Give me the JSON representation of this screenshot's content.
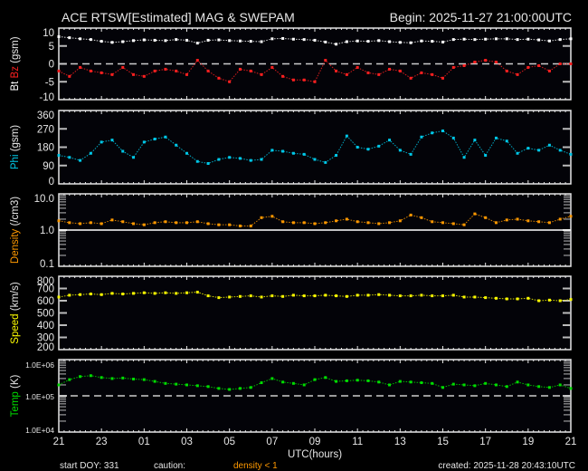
{
  "header": {
    "title": "ACE RTSW[Estimated] MAG & SWEPAM",
    "begin": "Begin: 2025-11-27 21:00:00UTC"
  },
  "footer": {
    "start_doy": "start DOY: 331",
    "caution": "caution:",
    "caution_note": "density < 1",
    "xlabel": "UTC(hours)",
    "created": "created: 2025-11-28 20:43:10UTC"
  },
  "colors": {
    "background": "#000000",
    "axes": "#e6e6e6",
    "bt": "#ffffff",
    "bz": "#ff2020",
    "phi": "#00c8e8",
    "density": "#ff9900",
    "speed": "#ffff00",
    "temp": "#00dd00"
  },
  "chart_data": {
    "type": "scatter",
    "x_unit": "UTC hours",
    "x_start": "2025-11-27 21:00",
    "x_step_minutes": 30,
    "x_tick_labels": [
      "21",
      "23",
      "01",
      "03",
      "05",
      "07",
      "09",
      "11",
      "13",
      "15",
      "17",
      "19",
      "21"
    ],
    "panels": [
      {
        "id": "mag",
        "ylabel_parts": [
          {
            "text": "Bt",
            "color": "#ffffff"
          },
          {
            "text": " Bz",
            "color": "#ff2020"
          },
          {
            "text": "  (gsm)",
            "color": "#e6e6e6"
          }
        ],
        "scale": "linear",
        "ylim": [
          -10,
          10
        ],
        "y_tick_labels": [
          "10",
          "5",
          "0",
          "-5",
          "-10"
        ],
        "y_tick_values": [
          10,
          5,
          0,
          -5,
          -10
        ],
        "reference_line": 0,
        "series": [
          {
            "name": "Bt",
            "color": "#ffffff",
            "values": [
              7.6,
              7.3,
              7.0,
              6.8,
              6.3,
              6.0,
              6.2,
              6.5,
              6.7,
              6.6,
              6.5,
              6.8,
              6.6,
              5.8,
              6.6,
              6.7,
              6.5,
              6.4,
              6.3,
              6.2,
              7.0,
              7.1,
              6.9,
              6.8,
              6.6,
              6.1,
              5.5,
              6.2,
              6.4,
              6.3,
              6.5,
              6.2,
              6.0,
              5.9,
              6.4,
              6.3,
              6.1,
              6.8,
              6.9,
              6.8,
              6.9,
              7.0,
              7.0,
              6.8,
              6.9,
              6.7,
              6.4,
              6.8,
              7.0
            ]
          },
          {
            "name": "Bz",
            "color": "#ff2020",
            "values": [
              -2,
              -3.5,
              -1,
              -2,
              -2.5,
              -3,
              -1,
              -3,
              -3.5,
              -2,
              -1.5,
              -2,
              -3,
              1,
              -2,
              -4,
              -5,
              -1.5,
              -2,
              -3,
              -1,
              -3.5,
              -4.5,
              -4.5,
              -5,
              1,
              -2,
              -3,
              -1,
              -2.5,
              -3,
              -1.5,
              -2,
              -4,
              -2.5,
              -3,
              -4,
              -1,
              -0.5,
              0.5,
              1,
              0.5,
              -2,
              -3,
              -1,
              -0.5,
              -2,
              0,
              0
            ]
          }
        ]
      },
      {
        "id": "phi",
        "ylabel_parts": [
          {
            "text": "Phi",
            "color": "#00c8e8"
          },
          {
            "text": "  (gsm)",
            "color": "#e6e6e6"
          }
        ],
        "scale": "linear",
        "ylim": [
          0,
          360
        ],
        "y_tick_labels": [
          "360",
          "270",
          "180",
          "90",
          "0"
        ],
        "y_tick_values": [
          360,
          270,
          180,
          90,
          0
        ],
        "series": [
          {
            "name": "Phi",
            "color": "#00c8e8",
            "values": [
              140,
              130,
              115,
              150,
              205,
              215,
              160,
              130,
              205,
              220,
              230,
              190,
              150,
              110,
              100,
              120,
              130,
              125,
              115,
              120,
              165,
              160,
              150,
              145,
              120,
              105,
              140,
              235,
              180,
              170,
              185,
              215,
              165,
              145,
              230,
              250,
              260,
              225,
              130,
              215,
              140,
              225,
              210,
              150,
              175,
              165,
              190,
              165,
              145
            ]
          }
        ]
      },
      {
        "id": "density",
        "ylabel_parts": [
          {
            "text": "Density",
            "color": "#ff9900"
          },
          {
            "text": "  (/cm3)",
            "color": "#e6e6e6"
          }
        ],
        "scale": "log",
        "ylim": [
          0.1,
          10
        ],
        "y_tick_labels": [
          "10.0",
          "1.0",
          "0.1"
        ],
        "y_tick_values": [
          10,
          1,
          0.1
        ],
        "reference_line": 1,
        "series": [
          {
            "name": "Density",
            "color": "#ff9900",
            "values": [
              1.8,
              1.6,
              1.5,
              1.6,
              1.5,
              1.9,
              1.7,
              1.5,
              1.4,
              1.6,
              1.7,
              1.6,
              1.6,
              1.7,
              1.5,
              1.4,
              1.4,
              1.3,
              1.3,
              2.2,
              2.4,
              1.7,
              1.6,
              1.6,
              1.5,
              1.6,
              1.8,
              2.0,
              1.7,
              1.6,
              1.5,
              1.6,
              1.8,
              2.6,
              2.2,
              1.7,
              1.6,
              1.5,
              1.4,
              2.8,
              2.2,
              1.6,
              1.9,
              2.0,
              1.8,
              1.7,
              1.6,
              2.0,
              2.4
            ]
          }
        ]
      },
      {
        "id": "speed",
        "ylabel_parts": [
          {
            "text": "Speed",
            "color": "#ffff00"
          },
          {
            "text": "  (km/s)",
            "color": "#e6e6e6"
          }
        ],
        "scale": "linear",
        "ylim": [
          200,
          800
        ],
        "y_tick_labels": [
          "800",
          "700",
          "600",
          "500",
          "400",
          "300",
          "200"
        ],
        "y_tick_values": [
          800,
          700,
          600,
          500,
          400,
          300,
          200
        ],
        "series": [
          {
            "name": "Speed",
            "color": "#ffff00",
            "values": [
              630,
              645,
              650,
              655,
              650,
              660,
              655,
              660,
              665,
              660,
              665,
              660,
              665,
              670,
              640,
              625,
              630,
              635,
              640,
              630,
              640,
              635,
              645,
              640,
              640,
              645,
              640,
              635,
              645,
              645,
              650,
              645,
              640,
              640,
              645,
              640,
              640,
              645,
              630,
              630,
              625,
              620,
              615,
              615,
              620,
              600,
              605,
              600,
              610
            ]
          }
        ]
      },
      {
        "id": "temp",
        "ylabel_parts": [
          {
            "text": "Temp",
            "color": "#00dd00"
          },
          {
            "text": "  (K)",
            "color": "#e6e6e6"
          }
        ],
        "scale": "log",
        "ylim": [
          10000,
          1000000
        ],
        "y_tick_labels": [
          "1.0E+06",
          "1.0E+05",
          "1.0E+04"
        ],
        "y_tick_values": [
          1000000,
          100000,
          10000
        ],
        "reference_line": 100000,
        "series": [
          {
            "name": "Temp",
            "color": "#00dd00",
            "values": [
              200000,
              280000,
              340000,
              360000,
              320000,
              300000,
              310000,
              290000,
              280000,
              250000,
              220000,
              210000,
              200000,
              190000,
              180000,
              160000,
              150000,
              160000,
              170000,
              230000,
              300000,
              240000,
              220000,
              200000,
              280000,
              320000,
              250000,
              260000,
              270000,
              260000,
              240000,
              200000,
              250000,
              240000,
              230000,
              220000,
              170000,
              210000,
              200000,
              190000,
              220000,
              200000,
              180000,
              240000,
              200000,
              180000,
              170000,
              200000,
              160000
            ]
          }
        ]
      }
    ]
  }
}
